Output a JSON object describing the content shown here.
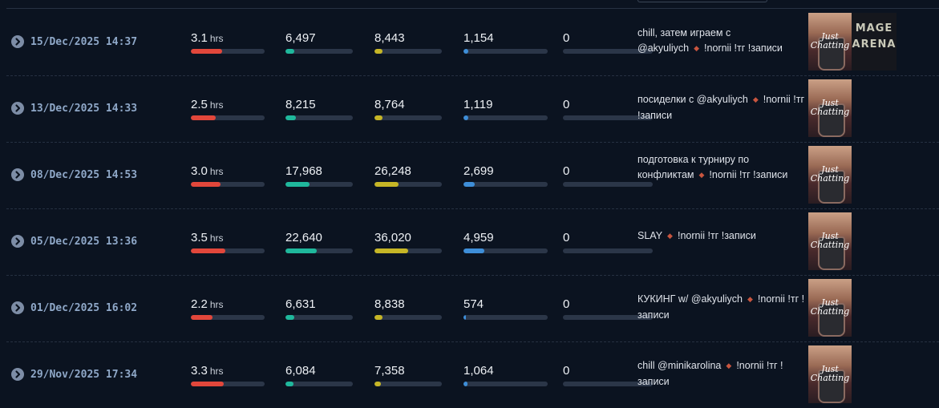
{
  "streams": [
    {
      "date": "15/Dec/2025 14:37",
      "duration": "3.1",
      "duration_unit": "hrs",
      "duration_fraction": 0.42,
      "avg_viewers": "6,497",
      "avg_fraction": 0.13,
      "peak_viewers": "8,443",
      "peak_fraction": 0.12,
      "followers": "1,154",
      "followers_fraction": 0.06,
      "extra": "0",
      "extra_fraction": 0,
      "title_text": "chill, затем играем с @akyuliych",
      "title_tail": "!nornii !тг !записи",
      "thumbnails": [
        "Just Chatting",
        "MAGE ARENA"
      ]
    },
    {
      "date": "13/Dec/2025 14:33",
      "duration": "2.5",
      "duration_unit": "hrs",
      "duration_fraction": 0.34,
      "avg_viewers": "8,215",
      "avg_fraction": 0.16,
      "peak_viewers": "8,764",
      "peak_fraction": 0.12,
      "followers": "1,119",
      "followers_fraction": 0.06,
      "extra": "0",
      "extra_fraction": 0,
      "title_text": "посиделки с @akyuliych",
      "title_tail": "!nornii !тг !записи",
      "thumbnails": [
        "Just Chatting"
      ]
    },
    {
      "date": "08/Dec/2025 14:53",
      "duration": "3.0",
      "duration_unit": "hrs",
      "duration_fraction": 0.4,
      "avg_viewers": "17,968",
      "avg_fraction": 0.36,
      "peak_viewers": "26,248",
      "peak_fraction": 0.36,
      "followers": "2,699",
      "followers_fraction": 0.13,
      "extra": "0",
      "extra_fraction": 0,
      "title_text": "подготовка к турниру по конфликтам",
      "title_tail": "!nornii !тг !записи",
      "thumbnails": [
        "Just Chatting"
      ]
    },
    {
      "date": "05/Dec/2025 13:36",
      "duration": "3.5",
      "duration_unit": "hrs",
      "duration_fraction": 0.47,
      "avg_viewers": "22,640",
      "avg_fraction": 0.46,
      "peak_viewers": "36,020",
      "peak_fraction": 0.5,
      "followers": "4,959",
      "followers_fraction": 0.25,
      "extra": "0",
      "extra_fraction": 0,
      "title_text": "SLAY",
      "title_tail": "!nornii !тг !записи",
      "thumbnails": [
        "Just Chatting"
      ]
    },
    {
      "date": "01/Dec/2025 16:02",
      "duration": "2.2",
      "duration_unit": "hrs",
      "duration_fraction": 0.29,
      "avg_viewers": "6,631",
      "avg_fraction": 0.13,
      "peak_viewers": "8,838",
      "peak_fraction": 0.12,
      "followers": "574",
      "followers_fraction": 0.03,
      "extra": "0",
      "extra_fraction": 0,
      "title_text": "КУКИНГ w/ @akyuliych",
      "title_tail": "!nornii !тг !записи",
      "thumbnails": [
        "Just Chatting"
      ]
    },
    {
      "date": "29/Nov/2025 17:34",
      "duration": "3.3",
      "duration_unit": "hrs",
      "duration_fraction": 0.45,
      "avg_viewers": "6,084",
      "avg_fraction": 0.12,
      "peak_viewers": "7,358",
      "peak_fraction": 0.1,
      "followers": "1,064",
      "followers_fraction": 0.05,
      "extra": "0",
      "extra_fraction": 0,
      "title_text": "chill @minikarolina",
      "title_tail": "!nornii !тг !записи",
      "thumbnails": [
        "Just Chatting"
      ]
    }
  ],
  "colors": {
    "duration_bar": "#e2473b",
    "avg_bar": "#1fb89c",
    "peak_bar": "#c6b626",
    "followers_bar": "#3e8ed8",
    "date_text": "#8fa8c8",
    "separator_diamond": "#c8553f"
  },
  "icons": {
    "expand": "chevron-right-circle-icon",
    "separator": "diamond-icon"
  }
}
